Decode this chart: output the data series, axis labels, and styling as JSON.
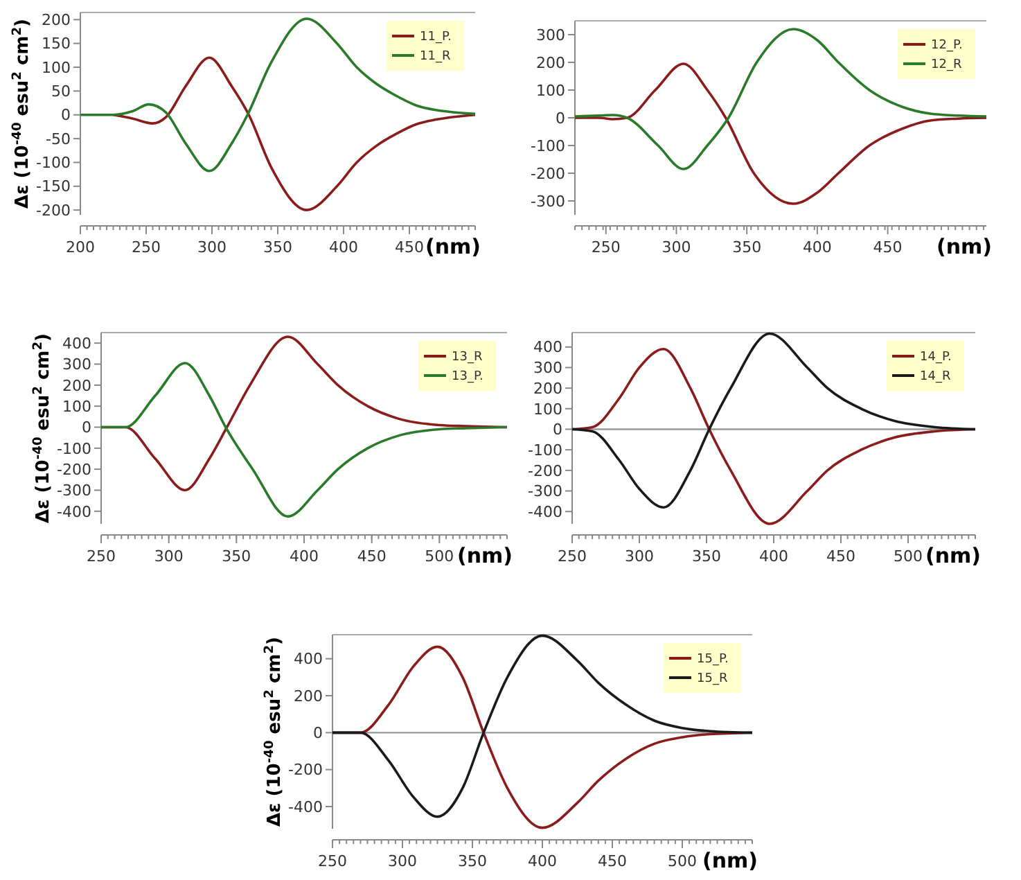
{
  "chart_data": [
    {
      "type": "line",
      "xlabel": "(nm)",
      "ylabel": "Δε (10$^{-40}$ esu$^{2}$ cm$^{2}$)",
      "xlim": [
        200,
        500
      ],
      "xticks": [
        200,
        250,
        300,
        350,
        400,
        450
      ],
      "ylim": [
        -210,
        215
      ],
      "yticks": [
        -200,
        -150,
        -100,
        -50,
        0,
        50,
        100,
        150,
        200
      ],
      "legend": "top right",
      "series": [
        {
          "name": "11_P.",
          "color": "#8b1c1c",
          "x": [
            225,
            240,
            255,
            265,
            280,
            298,
            315,
            328,
            345,
            372,
            395,
            410,
            425,
            440,
            455,
            470,
            485,
            500
          ],
          "values": [
            0,
            -8,
            -18,
            -5,
            60,
            120,
            60,
            0,
            -110,
            -200,
            -150,
            -100,
            -65,
            -40,
            -20,
            -10,
            -4,
            0
          ]
        },
        {
          "name": "11_R",
          "color": "#2a7a2a",
          "x": [
            200,
            225,
            240,
            252,
            265,
            280,
            298,
            315,
            327,
            345,
            372,
            395,
            410,
            425,
            440,
            455,
            470,
            485,
            500
          ],
          "values": [
            0,
            0,
            8,
            22,
            5,
            -60,
            -118,
            -60,
            0,
            110,
            202,
            150,
            100,
            65,
            40,
            20,
            10,
            5,
            2
          ]
        }
      ]
    },
    {
      "type": "line",
      "xlabel": "(nm)",
      "xlim": [
        228,
        520
      ],
      "xticks": [
        250,
        300,
        350,
        400,
        450
      ],
      "ylim": [
        -350,
        350
      ],
      "yticks": [
        -300,
        -200,
        -100,
        0,
        100,
        200,
        300
      ],
      "legend": "top right",
      "tick_labels": true,
      "series": [
        {
          "name": "12_P.",
          "color": "#8b1c1c",
          "x": [
            228,
            245,
            255,
            265,
            285,
            305,
            322,
            335,
            355,
            383,
            400,
            415,
            437,
            460,
            480,
            500,
            520
          ],
          "values": [
            0,
            0,
            -5,
            0,
            100,
            195,
            100,
            0,
            -200,
            -310,
            -270,
            -200,
            -100,
            -40,
            -10,
            -3,
            0
          ]
        },
        {
          "name": "12_R",
          "color": "#2a7a2a",
          "x": [
            228,
            245,
            255,
            265,
            287,
            305,
            322,
            337,
            357,
            383,
            400,
            415,
            437,
            460,
            480,
            500,
            520
          ],
          "values": [
            5,
            8,
            10,
            0,
            -100,
            -185,
            -100,
            0,
            200,
            320,
            280,
            200,
            100,
            40,
            15,
            8,
            5
          ]
        }
      ]
    },
    {
      "type": "line",
      "xlabel": "(nm)",
      "ylabel": "Δε (10$^{-40}$ esu$^{2}$ cm$^{2}$)",
      "xlim": [
        250,
        550
      ],
      "xticks": [
        250,
        300,
        350,
        400,
        450,
        500
      ],
      "ylim": [
        -460,
        450
      ],
      "yticks": [
        -400,
        -300,
        -200,
        -100,
        0,
        100,
        200,
        300,
        400
      ],
      "legend": "top right",
      "series": [
        {
          "name": "13_R",
          "color": "#8b1c1c",
          "x": [
            250,
            268,
            290,
            312,
            330,
            343,
            360,
            388,
            410,
            425,
            447,
            470,
            500,
            520,
            550
          ],
          "values": [
            0,
            0,
            -150,
            -300,
            -150,
            0,
            200,
            430,
            300,
            200,
            100,
            40,
            10,
            5,
            0
          ]
        },
        {
          "name": "13_P.",
          "color": "#2a7a2a",
          "x": [
            250,
            268,
            290,
            312,
            330,
            342,
            362,
            388,
            410,
            425,
            447,
            470,
            500,
            520,
            550
          ],
          "values": [
            0,
            0,
            150,
            305,
            150,
            0,
            -200,
            -425,
            -300,
            -200,
            -100,
            -40,
            -10,
            -5,
            0
          ]
        }
      ]
    },
    {
      "type": "line",
      "xlabel": "(nm)",
      "xlim": [
        250,
        550
      ],
      "xticks": [
        250,
        300,
        350,
        400,
        450,
        500
      ],
      "ylim": [
        -460,
        470
      ],
      "yticks": [
        -400,
        -300,
        -200,
        -100,
        0,
        100,
        200,
        300,
        400
      ],
      "legend": "top right",
      "ref_lines": [
        {
          "axis": "y",
          "value": 0,
          "color": "#999999"
        }
      ],
      "series": [
        {
          "name": "14_P.",
          "color": "#8b1c1c",
          "x": [
            250,
            265,
            285,
            300,
            318,
            338,
            352,
            368,
            397,
            425,
            440,
            465,
            490,
            520,
            550
          ],
          "values": [
            0,
            10,
            150,
            300,
            390,
            200,
            0,
            -200,
            -460,
            -300,
            -200,
            -100,
            -40,
            -10,
            0
          ]
        },
        {
          "name": "14_R",
          "color": "#1a1a1a",
          "x": [
            250,
            265,
            285,
            300,
            318,
            338,
            352,
            368,
            397,
            425,
            440,
            465,
            490,
            520,
            550
          ],
          "values": [
            0,
            -10,
            -150,
            -290,
            -380,
            -200,
            0,
            200,
            465,
            300,
            200,
            100,
            40,
            10,
            0
          ]
        }
      ]
    },
    {
      "type": "line",
      "xlabel": "(nm)",
      "ylabel": "Δε (10$^{-40}$ esu$^{2}$ cm$^{2}$)",
      "xlim": [
        250,
        550
      ],
      "xticks": [
        250,
        300,
        350,
        400,
        450,
        500
      ],
      "ylim": [
        -520,
        530
      ],
      "yticks": [
        -400,
        -200,
        0,
        200,
        400
      ],
      "legend": "top right",
      "ref_lines": [
        {
          "axis": "y",
          "value": 0,
          "color": "#999999"
        }
      ],
      "series": [
        {
          "name": "15_P.",
          "color": "#8b1c1c",
          "x": [
            250,
            270,
            290,
            308,
            325,
            343,
            358,
            375,
            400,
            425,
            440,
            460,
            480,
            500,
            520,
            550
          ],
          "values": [
            0,
            0,
            150,
            360,
            465,
            300,
            0,
            -300,
            -515,
            -380,
            -260,
            -140,
            -60,
            -25,
            -8,
            0
          ]
        },
        {
          "name": "15_R",
          "color": "#1a1a1a",
          "x": [
            250,
            270,
            290,
            308,
            325,
            343,
            358,
            375,
            400,
            425,
            440,
            460,
            480,
            500,
            520,
            550
          ],
          "values": [
            0,
            0,
            -150,
            -350,
            -455,
            -300,
            0,
            300,
            525,
            390,
            270,
            150,
            65,
            25,
            8,
            0
          ]
        }
      ]
    }
  ]
}
